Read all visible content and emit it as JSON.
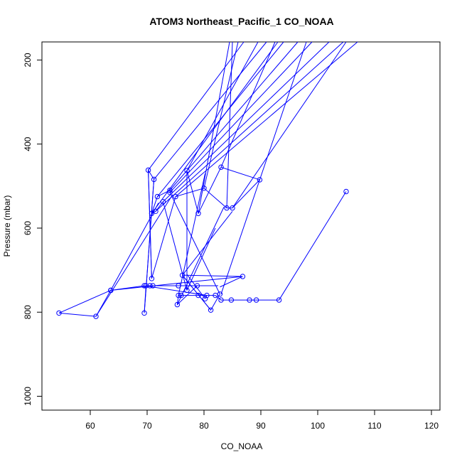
{
  "chart_data": {
    "type": "scatter",
    "title": "ATOM3 Northeast_Pacific_1 CO_NOAA",
    "xlabel": "CO_NOAA",
    "ylabel": "Pressure (mbar)",
    "xlim": [
      51.5,
      121.5
    ],
    "ylim": [
      1033,
      157
    ],
    "y_reversed": true,
    "x_ticks": [
      "60",
      "70",
      "80",
      "90",
      "100",
      "110",
      "120"
    ],
    "y_ticks": [
      "200",
      "400",
      "600",
      "800",
      "1000"
    ],
    "series_color": "#0000ff",
    "grid": false,
    "series": [
      {
        "style": "lines+points",
        "points": [
          [
            105.0,
            513
          ],
          [
            93.2,
            771
          ],
          [
            89.2,
            771
          ],
          [
            88.0,
            771
          ],
          [
            84.8,
            771
          ],
          [
            83.0,
            771
          ],
          [
            82.0,
            760
          ],
          [
            79.0,
            760
          ],
          [
            76.0,
            760
          ],
          [
            75.5,
            760
          ],
          [
            75.3,
            782
          ],
          [
            78.8,
            737
          ],
          [
            75.5,
            737
          ],
          [
            71.0,
            737
          ],
          [
            70.5,
            737
          ],
          [
            69.8,
            737
          ],
          [
            69.5,
            802
          ],
          [
            71.2,
            484
          ],
          [
            70.2,
            462
          ],
          [
            70.8,
            720
          ],
          [
            75.0,
            525
          ],
          [
            80.0,
            505
          ],
          [
            84.0,
            552
          ],
          [
            85.0,
            552
          ],
          [
            89.8,
            485
          ],
          [
            83.0,
            455
          ],
          [
            79.0,
            565
          ],
          [
            77.0,
            463
          ],
          [
            77.0,
            748
          ],
          [
            72.8,
            537
          ],
          [
            71.5,
            560
          ],
          [
            70.8,
            565
          ],
          [
            71.8,
            525
          ],
          [
            74.0,
            510
          ],
          [
            74.0,
            515
          ],
          [
            82.8,
            757
          ],
          [
            81.2,
            795
          ],
          [
            76.2,
            712
          ],
          [
            86.8,
            715
          ],
          [
            63.6,
            748
          ],
          [
            61.0,
            810
          ],
          [
            54.5,
            802
          ],
          [
            63.6,
            748
          ],
          [
            69.5,
            737
          ],
          [
            80.5,
            760
          ],
          [
            80.2,
            768
          ]
        ]
      },
      {
        "style": "lines-only",
        "segments": [
          [
            [
              70.2,
              462
            ],
            [
              87.0,
              150
            ]
          ],
          [
            [
              71.2,
              484
            ],
            [
              91.0,
              150
            ]
          ],
          [
            [
              74.0,
              510
            ],
            [
              96.5,
              150
            ]
          ],
          [
            [
              74.0,
              515
            ],
            [
              99.0,
              150
            ]
          ],
          [
            [
              72.8,
              537
            ],
            [
              102.0,
              150
            ]
          ],
          [
            [
              71.8,
              525
            ],
            [
              94.0,
              150
            ]
          ],
          [
            [
              71.5,
              560
            ],
            [
              104.5,
              150
            ]
          ],
          [
            [
              70.8,
              565
            ],
            [
              93.0,
              150
            ]
          ],
          [
            [
              75.0,
              525
            ],
            [
              107.0,
              150
            ]
          ],
          [
            [
              79.0,
              565
            ],
            [
              84.5,
              150
            ]
          ],
          [
            [
              80.0,
              505
            ],
            [
              86.0,
              150
            ]
          ],
          [
            [
              77.0,
              463
            ],
            [
              89.5,
              150
            ]
          ],
          [
            [
              83.0,
              455
            ],
            [
              92.5,
              150
            ]
          ],
          [
            [
              84.0,
              552
            ],
            [
              85.0,
              150
            ]
          ],
          [
            [
              85.0,
              552
            ],
            [
              105.0,
              150
            ]
          ],
          [
            [
              89.8,
              485
            ],
            [
              98.0,
              150
            ]
          ],
          [
            [
              70.2,
              462
            ],
            [
              70.8,
              720
            ]
          ],
          [
            [
              69.5,
              802
            ],
            [
              71.2,
              484
            ]
          ],
          [
            [
              75.3,
              782
            ],
            [
              83.5,
              550
            ]
          ],
          [
            [
              76.2,
              712
            ],
            [
              85.0,
              560
            ]
          ],
          [
            [
              75.5,
              760
            ],
            [
              80.2,
              470
            ]
          ],
          [
            [
              77.0,
              748
            ],
            [
              82.0,
              600
            ]
          ],
          [
            [
              63.6,
              748
            ],
            [
              72.0,
              540
            ]
          ],
          [
            [
              61.0,
              810
            ],
            [
              74.5,
              520
            ]
          ],
          [
            [
              75.5,
              737
            ],
            [
              82.0,
              737
            ]
          ],
          [
            [
              70.5,
              737
            ],
            [
              82.5,
              737
            ]
          ],
          [
            [
              83.0,
              757
            ],
            [
              89.8,
              485
            ]
          ],
          [
            [
              80.2,
              768
            ],
            [
              77.0,
              710
            ]
          ],
          [
            [
              81.2,
              795
            ],
            [
              76.2,
              712
            ]
          ],
          [
            [
              86.8,
              715
            ],
            [
              82.8,
              740
            ]
          ]
        ]
      }
    ]
  }
}
